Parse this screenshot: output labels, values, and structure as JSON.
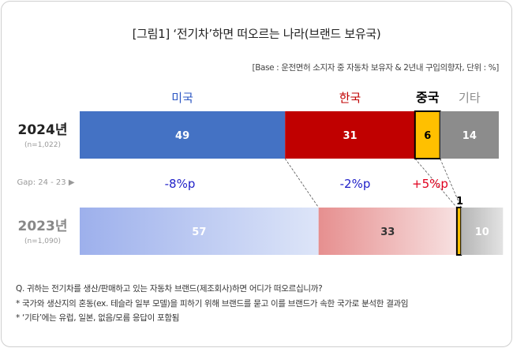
{
  "title": "[그림1] ‘전기차’하면 떠오르는 나라(브랜드 보유국)",
  "subtitle": "[Base : 운전면허 소지자 중 자동차 보유자 & 2년내 구입의향자, 단위 : %]",
  "chart_data": {
    "type": "bar",
    "orientation": "horizontal-stacked-100",
    "categories": [
      "미국",
      "한국",
      "중국",
      "기타"
    ],
    "category_colors": [
      "#2f59c4",
      "#c00000",
      "#000000",
      "#8c8c8c"
    ],
    "rows": [
      {
        "label": "2024년",
        "sub": "(n=1,022)",
        "values": [
          49,
          31,
          6,
          14
        ]
      },
      {
        "label": "2023년",
        "sub": "(n=1,090)",
        "values": [
          57,
          33,
          1,
          10
        ]
      }
    ],
    "gap": {
      "label": "Gap: 24 - 23 ▶",
      "values": [
        "-8%p",
        "-2%p",
        "+5%p"
      ],
      "colors": [
        "#1f1fc8",
        "#1f1fc8",
        "#e0001e"
      ]
    },
    "colors_2024": [
      "#4472c4",
      "#c00000",
      "#ffc000",
      "#8c8c8c"
    ],
    "colors_2023": [
      "#a9bbeb",
      "#eda5a5",
      "#ffc000",
      "#cfcfcf"
    ]
  },
  "notes": [
    "Q. 귀하는 전기차를 생산/판매하고 있는 자동차 브랜드(제조회사)하면 어디가 떠오르십니까?",
    "* 국가와 생산지의 혼동(ex. 테슬라 일부 모델)을 피하기 위해 브랜드를 묻고 이를 브랜드가 속한 국가로 분석한 결과임",
    "* ‘기타’에는 유럽, 일본, 없음/모름 응답이 포함됨"
  ]
}
